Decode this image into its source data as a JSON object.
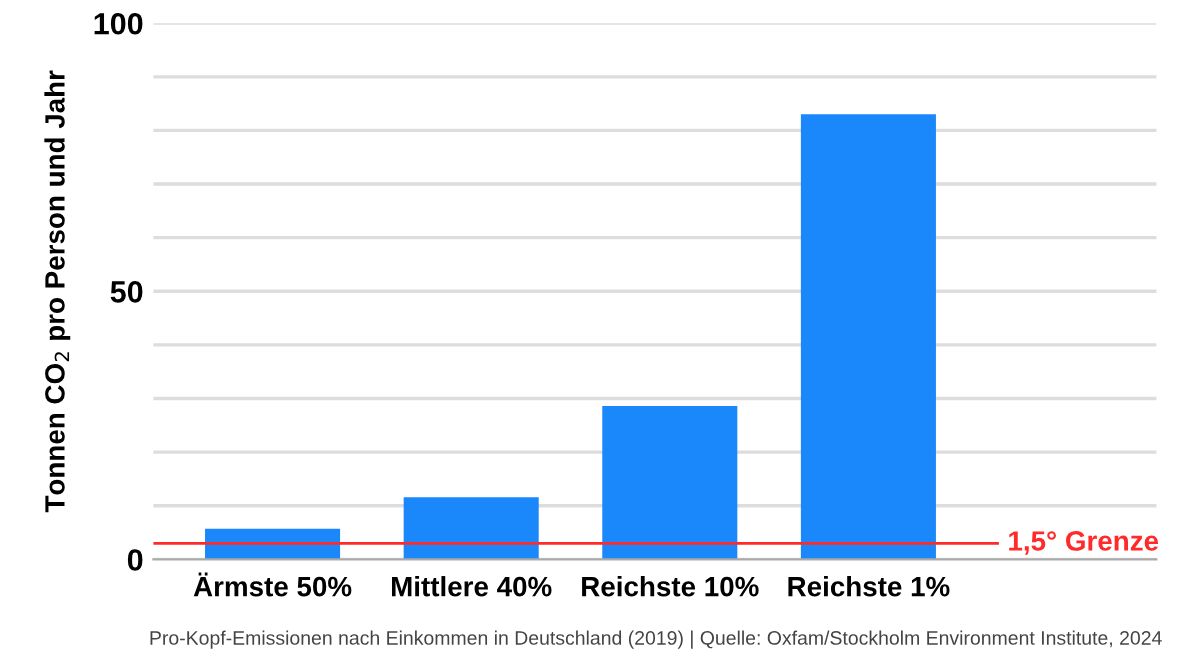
{
  "chart_data": {
    "type": "bar",
    "categories": [
      "Ärmste 50%",
      "Mittlere 40%",
      "Reichste 10%",
      "Reichste 1%"
    ],
    "values": [
      5.7,
      11.6,
      28.6,
      83.0
    ],
    "color": "#1a87fb",
    "ylabel": "Tonnen CO$_{2}$ pro Person und Jahr",
    "ylim": [
      0,
      100
    ],
    "yticks": [
      0,
      {
        "value": 10,
        "label": null
      },
      {
        "value": 20,
        "label": null
      },
      {
        "value": 30,
        "label": null
      },
      {
        "value": 40,
        "label": null
      },
      50,
      {
        "value": 60,
        "label": null
      },
      {
        "value": 70,
        "label": null
      },
      {
        "value": 80,
        "label": null
      },
      {
        "value": 90,
        "label": null
      },
      100
    ],
    "grid": "y",
    "ref_lines": [
      {
        "axis": "y",
        "value": 3,
        "label": "1,5° Grenze",
        "color": "#ff2a2a"
      }
    ],
    "annotations": [
      "Pro-Kopf-Emissionen nach Einkommen in Deutschland (2019) | Quelle: Oxfam/Stockholm Environment Institute, 2024"
    ]
  }
}
